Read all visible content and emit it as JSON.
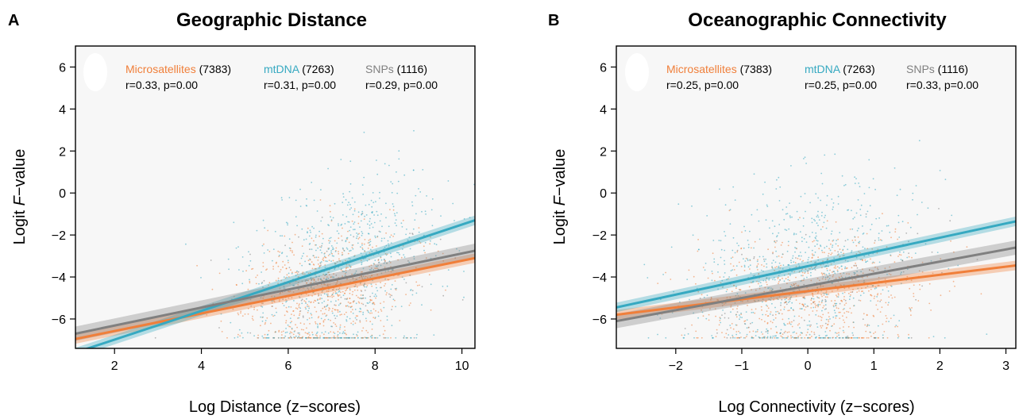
{
  "colors": {
    "microsatellites": "#f07f3a",
    "mtdna": "#36a9c1",
    "snps": "#808080",
    "plot_bg": "#f7f7f7"
  },
  "chart_data": [
    {
      "type": "scatter",
      "panel_letter": "A",
      "title": "Geographic Distance",
      "xlabel": "Log Distance (z−scores)",
      "ylabel_prefix": "Logit ",
      "ylabel_italic": "F",
      "ylabel_suffix": "−value",
      "xlim": [
        1.1,
        10.3
      ],
      "ylim": [
        -7.4,
        7.0
      ],
      "xticks": [
        2,
        4,
        6,
        8,
        10
      ],
      "xtick_labels": [
        "2",
        "4",
        "6",
        "8",
        "10"
      ],
      "yticks": [
        -6,
        -4,
        -2,
        0,
        2,
        4,
        6
      ],
      "ytick_labels": [
        "−6",
        "−4",
        "−2",
        "0",
        "2",
        "4",
        "6"
      ],
      "grid": false,
      "legend": [
        {
          "name": "Microsatellites",
          "count": "(7383)",
          "stats": "r=0.33, p=0.00",
          "color_key": "microsatellites"
        },
        {
          "name": "mtDNA",
          "count": "(7263)",
          "stats": "r=0.31, p=0.00",
          "color_key": "mtdna"
        },
        {
          "name": "SNPs",
          "count": "(1116)",
          "stats": "r=0.29, p=0.00",
          "color_key": "snps"
        }
      ],
      "series": [
        {
          "name": "Microsatellites",
          "color_key": "microsatellites",
          "n": 7383,
          "x_center": 6.9,
          "x_sd": 1.0,
          "fit": {
            "x": [
              1.1,
              10.3
            ],
            "y": [
              -6.95,
              -3.1
            ]
          }
        },
        {
          "name": "mtDNA",
          "color_key": "mtdna",
          "n": 7263,
          "x_center": 7.3,
          "x_sd": 1.1,
          "fit": {
            "x": [
              1.1,
              10.3
            ],
            "y": [
              -7.6,
              -1.3
            ]
          }
        },
        {
          "name": "SNPs",
          "color_key": "snps",
          "n": 1116,
          "x_center": 7.0,
          "x_sd": 1.2,
          "fit": {
            "x": [
              1.1,
              10.3
            ],
            "y": [
              -6.7,
              -2.75
            ]
          }
        }
      ]
    },
    {
      "type": "scatter",
      "panel_letter": "B",
      "title": "Oceanographic Connectivity",
      "xlabel": "Log Connectivity (z−scores)",
      "ylabel_prefix": "Logit ",
      "ylabel_italic": "F",
      "ylabel_suffix": "−value",
      "xlim": [
        -2.9,
        3.15
      ],
      "ylim": [
        -7.4,
        7.0
      ],
      "xticks": [
        -2,
        -1,
        0,
        1,
        2,
        3
      ],
      "xtick_labels": [
        "−2",
        "−1",
        "0",
        "1",
        "2",
        "3"
      ],
      "yticks": [
        -6,
        -4,
        -2,
        0,
        2,
        4,
        6
      ],
      "ytick_labels": [
        "−6",
        "−4",
        "−2",
        "0",
        "2",
        "4",
        "6"
      ],
      "grid": false,
      "legend": [
        {
          "name": "Microsatellites",
          "count": "(7383)",
          "stats": "r=0.25, p=0.00",
          "color_key": "microsatellites"
        },
        {
          "name": "mtDNA",
          "count": "(7263)",
          "stats": "r=0.25, p=0.00",
          "color_key": "mtdna"
        },
        {
          "name": "SNPs",
          "count": "(1116)",
          "stats": "r=0.33, p=0.00",
          "color_key": "snps"
        }
      ],
      "series": [
        {
          "name": "Microsatellites",
          "color_key": "microsatellites",
          "n": 7383,
          "x_center": 0.1,
          "x_sd": 0.85,
          "fit": {
            "x": [
              -2.9,
              3.15
            ],
            "y": [
              -5.8,
              -3.45
            ]
          }
        },
        {
          "name": "mtDNA",
          "color_key": "mtdna",
          "n": 7263,
          "x_center": -0.1,
          "x_sd": 0.85,
          "fit": {
            "x": [
              -2.9,
              3.15
            ],
            "y": [
              -5.45,
              -1.35
            ]
          }
        },
        {
          "name": "SNPs",
          "color_key": "snps",
          "n": 1116,
          "x_center": 0.3,
          "x_sd": 1.0,
          "fit": {
            "x": [
              -2.9,
              3.15
            ],
            "y": [
              -6.1,
              -2.6
            ]
          }
        }
      ]
    }
  ]
}
